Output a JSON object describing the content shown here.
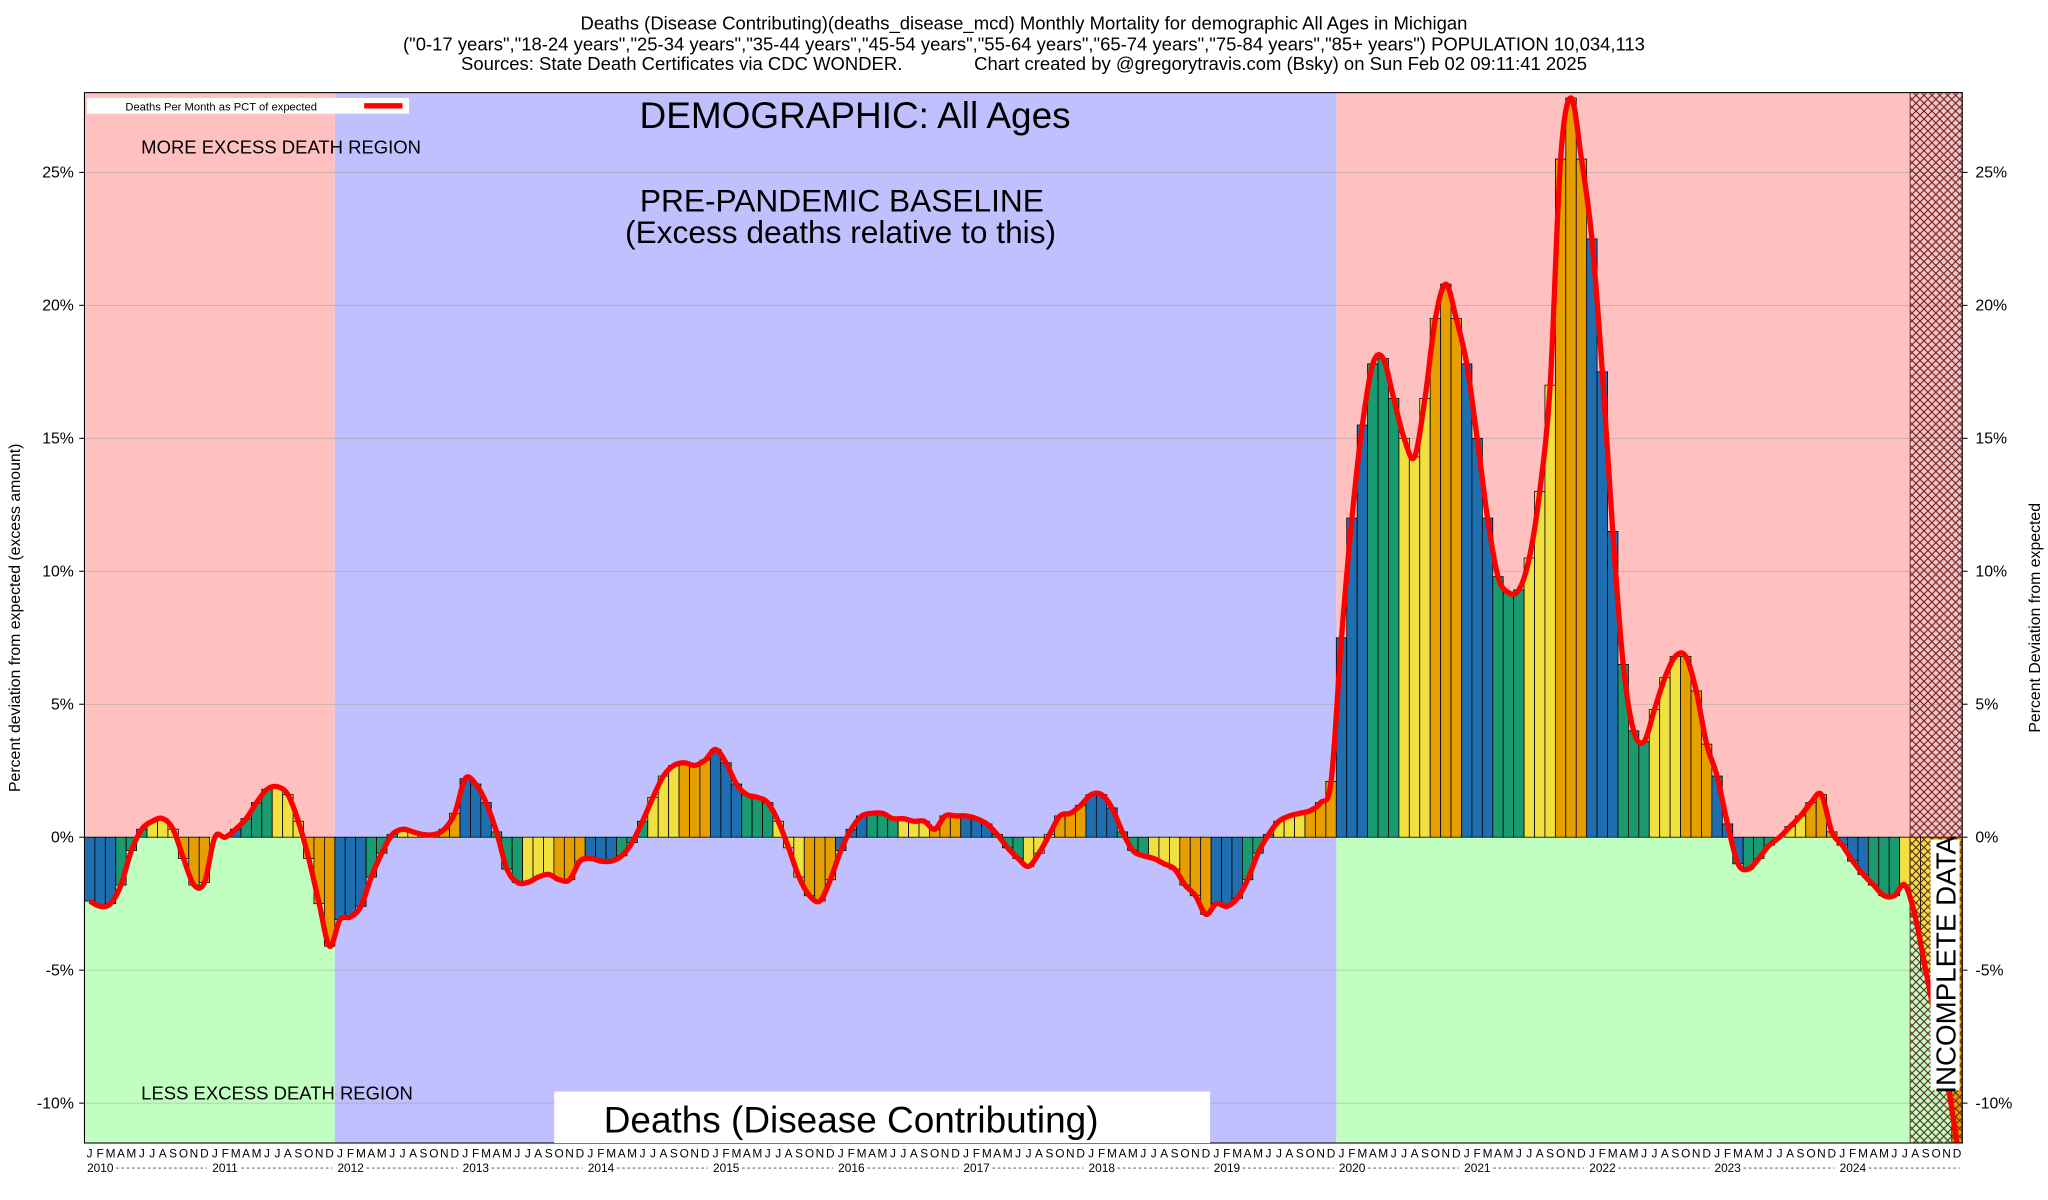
{
  "chart_data": {
    "type": "bar",
    "title": "Deaths (Disease Contributing)(deaths_disease_mcd) Monthly Mortality for demographic All Ages in Michigan",
    "subtitle": "(\"0-17 years\",\"18-24 years\",\"25-34 years\",\"35-44 years\",\"45-54 years\",\"55-64 years\",\"65-74 years\",\"75-84 years\",\"85+ years\") POPULATION 10,034,113",
    "source": "Sources: State Death Certificates via CDC WONDER.              Chart created by @gregorytravis.com (Bsky) on Sun Feb 02 09:11:41 2025",
    "demographic_label": "DEMOGRAPHIC: All Ages",
    "baseline_label": "PRE-PANDEMIC BASELINE",
    "baseline_sublabel": "(Excess deaths relative to this)",
    "more_region_label": "MORE EXCESS DEATH REGION",
    "less_region_label": "LESS EXCESS DEATH REGION",
    "bottom_label": "Deaths (Disease Contributing)",
    "incomplete_label": "INCOMPLETE DATA",
    "y_label": "Percent deviation from expected (excess amount)",
    "y2_label": "Percent Deviation from expected",
    "legend_label": "Deaths Per Month as PCT of expected",
    "line_color": "#ff0000",
    "quarter_colors": [
      "#1f6fb0",
      "#1a9a70",
      "#f0e040",
      "#e5a000"
    ],
    "years": [
      "2010",
      "2011",
      "2012",
      "2013",
      "2014",
      "2015",
      "2016",
      "2017",
      "2018",
      "2019",
      "2020",
      "2021",
      "2022",
      "2023",
      "2024"
    ],
    "categories": [
      "J",
      "F",
      "M",
      "A",
      "M",
      "J",
      "J",
      "A",
      "S",
      "O",
      "N",
      "D",
      "J",
      "F",
      "M",
      "A",
      "M",
      "J",
      "J",
      "A",
      "S",
      "O",
      "N",
      "D",
      "J",
      "F",
      "M",
      "A",
      "M",
      "J",
      "J",
      "A",
      "S",
      "O",
      "N",
      "D",
      "J",
      "F",
      "M",
      "A",
      "M",
      "J",
      "J",
      "A",
      "S",
      "O",
      "N",
      "D",
      "J",
      "F",
      "M",
      "A",
      "M",
      "J",
      "J",
      "A",
      "S",
      "O",
      "N",
      "D",
      "J",
      "F",
      "M",
      "A",
      "M",
      "J",
      "J",
      "A",
      "S",
      "O",
      "N",
      "D",
      "J",
      "F",
      "M",
      "A",
      "M",
      "J",
      "J",
      "A",
      "S",
      "O",
      "N",
      "D",
      "J",
      "F",
      "M",
      "A",
      "M",
      "J",
      "J",
      "A",
      "S",
      "O",
      "N",
      "D",
      "J",
      "F",
      "M",
      "A",
      "M",
      "J",
      "J",
      "A",
      "S",
      "O",
      "N",
      "D",
      "J",
      "F",
      "M",
      "A",
      "M",
      "J",
      "J",
      "A",
      "S",
      "O",
      "N",
      "D",
      "J",
      "F",
      "M",
      "A",
      "M",
      "J",
      "J",
      "A",
      "S",
      "O",
      "N",
      "D",
      "J",
      "F",
      "M",
      "A",
      "M",
      "J",
      "J",
      "A",
      "S",
      "O",
      "N",
      "D",
      "J",
      "F",
      "M",
      "A",
      "M",
      "J",
      "J",
      "A",
      "S",
      "O",
      "N",
      "D",
      "J",
      "F",
      "M",
      "A",
      "M",
      "J",
      "J",
      "A",
      "S",
      "O",
      "N",
      "D",
      "J",
      "F",
      "M",
      "A",
      "M",
      "J",
      "J",
      "A",
      "S",
      "O",
      "N",
      "D"
    ],
    "values": [
      -2.4,
      -2.6,
      -2.5,
      -1.8,
      -0.5,
      0.3,
      0.6,
      0.7,
      0.3,
      -0.8,
      -1.8,
      -1.7,
      0,
      0,
      0.3,
      0.7,
      1.3,
      1.8,
      1.9,
      1.6,
      0.6,
      -0.8,
      -2.5,
      -4.1,
      -3.1,
      -3.0,
      -2.6,
      -1.5,
      -0.6,
      0.1,
      0.3,
      0.2,
      0.1,
      0.1,
      0.3,
      0.9,
      2.2,
      2.0,
      1.3,
      0.2,
      -1.2,
      -1.7,
      -1.7,
      -1.5,
      -1.4,
      -1.6,
      -1.6,
      -0.9,
      -0.8,
      -0.9,
      -0.9,
      -0.7,
      -0.2,
      0.6,
      1.5,
      2.3,
      2.7,
      2.8,
      2.7,
      2.9,
      3.3,
      2.8,
      2.0,
      1.6,
      1.5,
      1.3,
      0.6,
      -0.4,
      -1.5,
      -2.2,
      -2.4,
      -1.6,
      -0.5,
      0.3,
      0.8,
      0.9,
      0.9,
      0.7,
      0.7,
      0.6,
      0.6,
      0.3,
      0.8,
      0.8,
      0.8,
      0.7,
      0.5,
      0.1,
      -0.4,
      -0.8,
      -1.1,
      -0.6,
      0.1,
      0.8,
      0.9,
      1.2,
      1.6,
      1.6,
      1.1,
      0.2,
      -0.5,
      -0.7,
      -0.8,
      -1.0,
      -1.2,
      -1.8,
      -2.2,
      -2.9,
      -2.5,
      -2.6,
      -2.3,
      -1.6,
      -0.6,
      0.1,
      0.6,
      0.8,
      0.9,
      1.0,
      1.3,
      2.1,
      7.5,
      12.0,
      15.5,
      17.8,
      18.0,
      16.5,
      15.0,
      14.3,
      16.5,
      19.5,
      20.8,
      19.5,
      17.8,
      15.0,
      12.0,
      9.8,
      9.2,
      9.3,
      10.5,
      13.0,
      17.0,
      25.5,
      27.8,
      25.5,
      22.5,
      17.5,
      11.5,
      6.5,
      4.0,
      3.6,
      4.8,
      6.0,
      6.8,
      6.8,
      5.5,
      3.5,
      2.3,
      0.5,
      -1.0,
      -1.2,
      -0.8,
      -0.3,
      0,
      0.4,
      0.8,
      1.3,
      1.6,
      0.2,
      -0.3,
      -0.9,
      -1.4,
      -1.8,
      -2.2,
      -2.2,
      -1.8,
      -3.0,
      -5.0,
      -7.0,
      -9.0,
      -11.5
    ],
    "ylim": [
      -11.5,
      28
    ],
    "yticks": [
      {
        "value": -10,
        "label": "-10%"
      },
      {
        "value": -5,
        "label": "-5%"
      },
      {
        "value": 0,
        "label": "0%"
      },
      {
        "value": 5,
        "label": "5%"
      },
      {
        "value": 10,
        "label": "10%"
      },
      {
        "value": 15,
        "label": "15%"
      },
      {
        "value": 20,
        "label": "20%"
      },
      {
        "value": 25,
        "label": "25%"
      }
    ],
    "grid": true
  }
}
